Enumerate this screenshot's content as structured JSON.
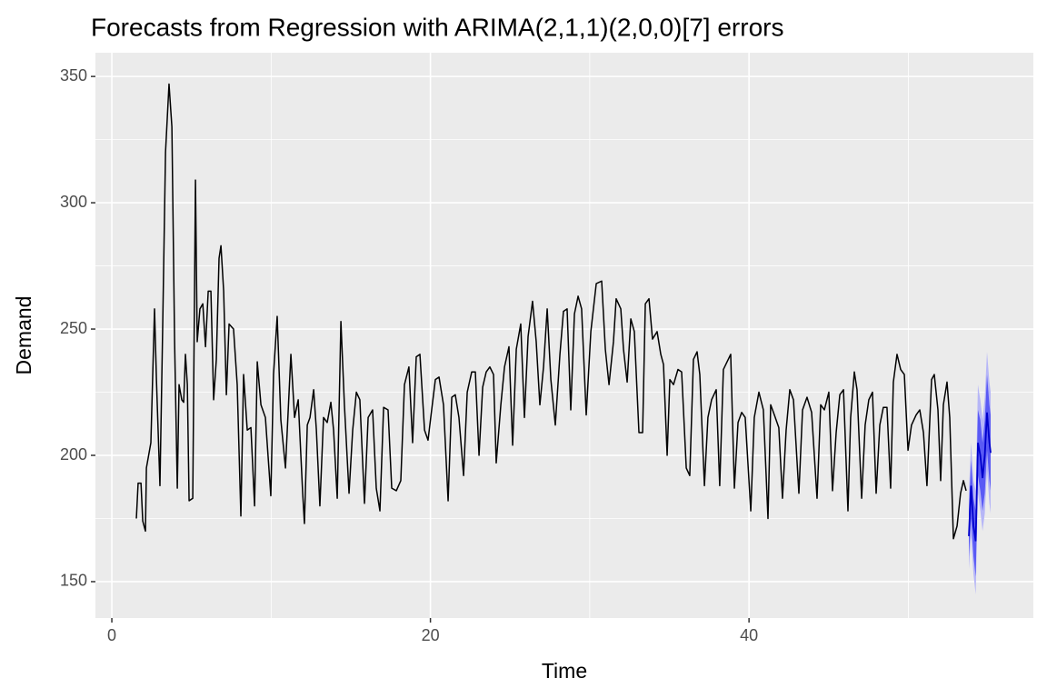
{
  "chart_data": {
    "type": "line",
    "title": "Forecasts from Regression with ARIMA(2,1,1)(2,0,0)[7] errors",
    "x_label": "Time",
    "y_label": "Demand",
    "xlim": [
      -1.03,
      57.85
    ],
    "ylim": [
      135.6,
      359.4
    ],
    "xticks": [
      0,
      20,
      40
    ],
    "yticks": [
      150,
      200,
      250,
      300,
      350
    ],
    "grid": true,
    "series": [
      {
        "color": "#000000",
        "x": [
          1.54,
          1.65,
          1.83,
          1.94,
          2.11,
          2.17,
          2.45,
          2.68,
          2.8,
          3.02,
          3.19,
          3.37,
          3.59,
          3.77,
          3.94,
          4.11,
          4.22,
          4.39,
          4.51,
          4.62,
          4.74,
          4.85,
          5.08,
          5.25,
          5.36,
          5.53,
          5.71,
          5.88,
          6.05,
          6.22,
          6.39,
          6.56,
          6.73,
          6.85,
          7.02,
          7.19,
          7.36,
          7.64,
          7.87,
          8.1,
          8.27,
          8.5,
          8.73,
          8.96,
          9.13,
          9.36,
          9.64,
          9.98,
          10.15,
          10.38,
          10.61,
          10.9,
          11.24,
          11.47,
          11.7,
          11.98,
          12.09,
          12.27,
          12.44,
          12.67,
          12.84,
          13.06,
          13.29,
          13.52,
          13.75,
          13.92,
          14.15,
          14.38,
          14.6,
          14.89,
          15.12,
          15.35,
          15.57,
          15.86,
          16.09,
          16.37,
          16.6,
          16.83,
          17.06,
          17.34,
          17.57,
          17.86,
          18.14,
          18.37,
          18.65,
          18.88,
          19.11,
          19.34,
          19.63,
          19.85,
          20.02,
          20.31,
          20.54,
          20.82,
          21.11,
          21.34,
          21.56,
          21.79,
          22.08,
          22.31,
          22.59,
          22.82,
          23.05,
          23.28,
          23.5,
          23.73,
          23.96,
          24.13,
          24.42,
          24.65,
          24.93,
          25.16,
          25.39,
          25.67,
          25.9,
          26.13,
          26.41,
          26.64,
          26.87,
          27.1,
          27.33,
          27.56,
          27.84,
          28.13,
          28.35,
          28.58,
          28.81,
          29.04,
          29.27,
          29.49,
          29.78,
          30.07,
          30.41,
          30.75,
          30.98,
          31.21,
          31.49,
          31.66,
          31.95,
          32.12,
          32.35,
          32.58,
          32.8,
          33.09,
          33.32,
          33.49,
          33.72,
          33.94,
          34.23,
          34.46,
          34.63,
          34.86,
          35.03,
          35.26,
          35.54,
          35.77,
          36.06,
          36.28,
          36.51,
          36.74,
          36.91,
          37.2,
          37.42,
          37.65,
          37.94,
          38.16,
          38.39,
          38.62,
          38.85,
          39.08,
          39.31,
          39.54,
          39.76,
          40.11,
          40.33,
          40.62,
          40.9,
          41.19,
          41.36,
          41.59,
          41.87,
          42.1,
          42.33,
          42.56,
          42.79,
          43.13,
          43.36,
          43.64,
          43.93,
          44.27,
          44.5,
          44.73,
          45.01,
          45.24,
          45.47,
          45.7,
          45.93,
          46.21,
          46.38,
          46.61,
          46.78,
          47.07,
          47.29,
          47.52,
          47.75,
          47.98,
          48.21,
          48.43,
          48.66,
          48.89,
          49.06,
          49.29,
          49.52,
          49.75,
          49.98,
          50.2,
          50.49,
          50.72,
          50.95,
          51.17,
          51.46,
          51.63,
          51.86,
          52.03,
          52.2,
          52.43,
          52.6,
          52.83,
          53.06,
          53.28,
          53.46,
          53.63
        ],
        "values": [
          175,
          189,
          189,
          174,
          170,
          195,
          205,
          258,
          230,
          188,
          250,
          320,
          347,
          330,
          245,
          187,
          228,
          222,
          221,
          240,
          228,
          182,
          183,
          309,
          245,
          258,
          260,
          243,
          265,
          265,
          222,
          238,
          278,
          283,
          265,
          224,
          252,
          250,
          228,
          176,
          232,
          210,
          211,
          180,
          237,
          220,
          215,
          184,
          232,
          255,
          214,
          195,
          240,
          215,
          222,
          185,
          173,
          212,
          215,
          226,
          210,
          180,
          215,
          213,
          221,
          210,
          183,
          253,
          220,
          185,
          210,
          225,
          222,
          181,
          215,
          218,
          187,
          178,
          219,
          218,
          187,
          186,
          190,
          228,
          235,
          205,
          239,
          240,
          210,
          206,
          215,
          230,
          231,
          220,
          182,
          223,
          224,
          215,
          192,
          225,
          233,
          233,
          200,
          227,
          233,
          235,
          232,
          197,
          220,
          235,
          243,
          204,
          242,
          252,
          215,
          247,
          261,
          245,
          220,
          235,
          258,
          230,
          212,
          240,
          257,
          258,
          218,
          256,
          263,
          258,
          216,
          249,
          268,
          269,
          242,
          228,
          245,
          262,
          258,
          242,
          229,
          254,
          249,
          209,
          209,
          260,
          262,
          246,
          249,
          240,
          236,
          200,
          230,
          228,
          234,
          233,
          195,
          192,
          238,
          241,
          232,
          188,
          215,
          222,
          226,
          188,
          234,
          237,
          240,
          187,
          213,
          217,
          215,
          178,
          215,
          225,
          218,
          175,
          220,
          216,
          211,
          183,
          210,
          226,
          222,
          185,
          218,
          223,
          217,
          183,
          220,
          218,
          225,
          186,
          209,
          224,
          226,
          178,
          215,
          233,
          226,
          183,
          212,
          222,
          225,
          185,
          212,
          219,
          219,
          187,
          229,
          240,
          234,
          232,
          202,
          212,
          216,
          218,
          209,
          188,
          230,
          232,
          218,
          190,
          220,
          229,
          215,
          167,
          172,
          185,
          190,
          186
        ]
      }
    ],
    "forecast": {
      "mean_color": "#0000cc",
      "band80_color": "#5a5af5",
      "band95_color": "#b6b6f7",
      "x": [
        53.8,
        53.94,
        54.09,
        54.23,
        54.37,
        54.52,
        54.66,
        54.8,
        54.94,
        55.09,
        55.17
      ],
      "mean": [
        168,
        188,
        172,
        166,
        205,
        200,
        191,
        200,
        217,
        205,
        201
      ],
      "lower80": [
        160,
        175,
        160,
        152,
        192,
        186,
        178,
        185,
        202,
        190,
        186
      ],
      "upper80": [
        178,
        198,
        183,
        178,
        218,
        214,
        205,
        214,
        232,
        220,
        216
      ],
      "lower95": [
        155,
        168,
        153,
        145,
        185,
        178,
        170,
        177,
        194,
        181,
        177
      ],
      "upper95": [
        185,
        205,
        190,
        186,
        228,
        222,
        214,
        223,
        241,
        229,
        225
      ]
    }
  }
}
